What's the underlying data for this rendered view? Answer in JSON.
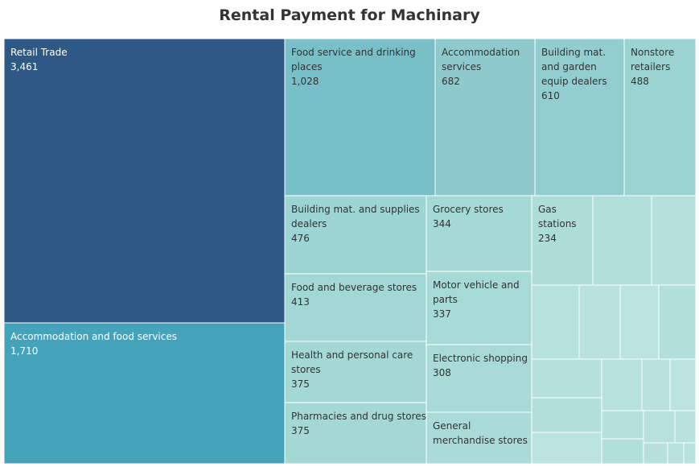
{
  "chart_data": {
    "type": "treemap",
    "title": "Rental Payment for Machinary",
    "items": [
      {
        "label": "Retail Trade",
        "value": 3461,
        "value_label": "3,461",
        "color": "#2e5985"
      },
      {
        "label": "Accommodation and food services",
        "value": 1710,
        "value_label": "1,710",
        "color": "#44a3bb"
      },
      {
        "label": "Food service and drinking places",
        "value": 1028,
        "value_label": "1,028",
        "color": "#78bfc8"
      },
      {
        "label": "Accommodation services",
        "value": 682,
        "value_label": "682",
        "color": "#8ecacd"
      },
      {
        "label": "Building mat. and garden equip dealers",
        "value": 610,
        "value_label": "610",
        "color": "#92cdd0"
      },
      {
        "label": "Nonstore retailers",
        "value": 488,
        "value_label": "488",
        "color": "#9ad3d2"
      },
      {
        "label": "Building mat. and supplies dealers",
        "value": 476,
        "value_label": "476",
        "color": "#9cd5d3"
      },
      {
        "label": "Grocery stores",
        "value": 344,
        "value_label": "344",
        "color": "#a5d9d6"
      },
      {
        "label": "Gas stations",
        "value": 234,
        "value_label": "234",
        "color": "#addcd9"
      },
      {
        "label": "Food and beverage stores",
        "value": 413,
        "value_label": "413",
        "color": "#a1d7d4"
      },
      {
        "label": "Motor vehicle and parts",
        "value": 337,
        "value_label": "337",
        "color": "#a6dad6"
      },
      {
        "label": "Health and personal care stores",
        "value": 375,
        "value_label": "375",
        "color": "#a3d8d5"
      },
      {
        "label": "Electronic shopping",
        "value": 308,
        "value_label": "308",
        "color": "#a8dad7"
      },
      {
        "label": "Pharmacies and drug stores",
        "value": 375,
        "value_label": "375",
        "color": "#a4d8d5"
      },
      {
        "label": "General merchandise stores",
        "value": null,
        "value_label": "",
        "color": "#aadbd8"
      }
    ]
  }
}
